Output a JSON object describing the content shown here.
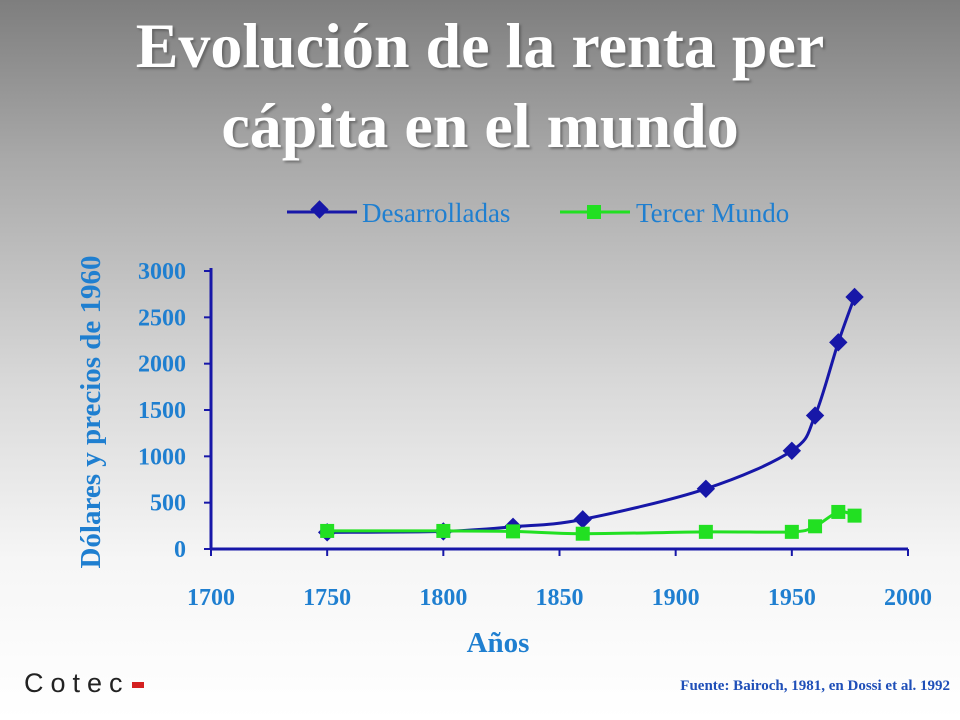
{
  "slide": {
    "title_line1": "Evolución de la renta per",
    "title_line2": "cápita en el mundo",
    "source": "Fuente: Bairoch, 1981, en Dossi et al. 1992",
    "logo_text": "Cotec"
  },
  "chart_data": {
    "type": "line",
    "title": "Evolución de la renta per cápita en el mundo",
    "xlabel": "Años",
    "ylabel": "Dólares y precios de 1960",
    "xlim": [
      1700,
      2000
    ],
    "ylim": [
      0,
      3000
    ],
    "x_ticks": [
      1700,
      1750,
      1800,
      1850,
      1900,
      1950,
      2000
    ],
    "y_ticks": [
      0,
      500,
      1000,
      1500,
      2000,
      2500,
      3000
    ],
    "grid": false,
    "legend_position": "top",
    "series": [
      {
        "name": "Desarrolladas",
        "color": "#1717a8",
        "marker": "diamond",
        "points": [
          [
            1750,
            180
          ],
          [
            1800,
            190
          ],
          [
            1830,
            240
          ],
          [
            1860,
            320
          ],
          [
            1913,
            650
          ],
          [
            1950,
            1060
          ],
          [
            1960,
            1440
          ],
          [
            1970,
            2230
          ],
          [
            1977,
            2720
          ]
        ]
      },
      {
        "name": "Tercer Mundo",
        "color": "#22e022",
        "marker": "square",
        "points": [
          [
            1750,
            195
          ],
          [
            1800,
            195
          ],
          [
            1830,
            190
          ],
          [
            1860,
            165
          ],
          [
            1913,
            185
          ],
          [
            1950,
            185
          ],
          [
            1960,
            245
          ],
          [
            1970,
            400
          ],
          [
            1977,
            360
          ]
        ]
      }
    ]
  }
}
